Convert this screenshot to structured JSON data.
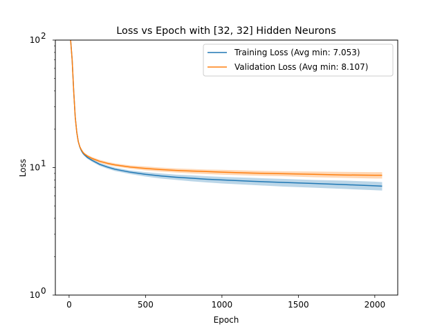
{
  "chart_data": {
    "type": "line",
    "title": "Loss vs Epoch with [32, 32] Hidden Neurons",
    "xlabel": "Epoch",
    "ylabel": "Loss",
    "xlim": [
      -90,
      2150
    ],
    "ylim": [
      1,
      100
    ],
    "yscale": "log",
    "grid": false,
    "legend_position": "top-right",
    "x_ticks": [
      0,
      500,
      1000,
      1500,
      2000
    ],
    "x_tick_labels": [
      "0",
      "500",
      "1000",
      "1500",
      "2000"
    ],
    "y_ticks": [
      1,
      10,
      100
    ],
    "y_tick_labels": [
      "10",
      "10",
      "10"
    ],
    "y_tick_exponents": [
      "0",
      "1",
      "2"
    ],
    "series": [
      {
        "name": "Training Loss (Avg min: 7.053)",
        "color": "#1f77b4",
        "band_color": "#1f77b4",
        "x": [
          10,
          20,
          30,
          40,
          50,
          60,
          70,
          80,
          90,
          100,
          120,
          150,
          200,
          250,
          300,
          400,
          500,
          600,
          700,
          800,
          900,
          1000,
          1200,
          1400,
          1600,
          1800,
          2000,
          2048
        ],
        "y": [
          100,
          70,
          40,
          25,
          19,
          16,
          14.5,
          13.6,
          13.0,
          12.6,
          12.0,
          11.4,
          10.6,
          10.1,
          9.7,
          9.2,
          8.85,
          8.6,
          8.4,
          8.25,
          8.1,
          8.0,
          7.8,
          7.65,
          7.5,
          7.35,
          7.2,
          7.15
        ],
        "y_lower": [
          100,
          70,
          40,
          25,
          19,
          16,
          14.2,
          13.3,
          12.7,
          12.3,
          11.7,
          11.1,
          10.3,
          9.8,
          9.4,
          8.9,
          8.5,
          8.2,
          8.0,
          7.8,
          7.65,
          7.5,
          7.3,
          7.1,
          6.95,
          6.8,
          6.65,
          6.6
        ],
        "y_upper": [
          100,
          70,
          40,
          25,
          19,
          16,
          14.8,
          13.9,
          13.3,
          12.9,
          12.3,
          11.7,
          10.9,
          10.4,
          10.0,
          9.5,
          9.2,
          9.0,
          8.8,
          8.7,
          8.55,
          8.45,
          8.3,
          8.15,
          8.0,
          7.9,
          7.75,
          7.7
        ]
      },
      {
        "name": "Validation Loss (Avg min: 8.107)",
        "color": "#ff7f0e",
        "band_color": "#ff7f0e",
        "x": [
          10,
          20,
          30,
          40,
          50,
          60,
          70,
          80,
          90,
          100,
          120,
          150,
          200,
          250,
          300,
          400,
          500,
          600,
          700,
          800,
          900,
          1000,
          1200,
          1400,
          1600,
          1800,
          2000,
          2048
        ],
        "y": [
          100,
          70,
          40,
          25,
          19,
          16,
          14.6,
          13.8,
          13.2,
          12.8,
          12.3,
          11.8,
          11.2,
          10.8,
          10.5,
          10.1,
          9.85,
          9.65,
          9.5,
          9.4,
          9.3,
          9.2,
          9.05,
          8.95,
          8.85,
          8.75,
          8.7,
          8.7
        ],
        "y_lower": [
          100,
          70,
          40,
          25,
          19,
          16,
          14.3,
          13.5,
          12.9,
          12.5,
          12.0,
          11.5,
          10.9,
          10.5,
          10.2,
          9.8,
          9.5,
          9.3,
          9.15,
          9.0,
          8.9,
          8.8,
          8.65,
          8.55,
          8.4,
          8.3,
          8.2,
          8.2
        ],
        "y_upper": [
          100,
          70,
          40,
          25,
          19,
          16,
          14.9,
          14.1,
          13.5,
          13.1,
          12.6,
          12.1,
          11.5,
          11.1,
          10.8,
          10.4,
          10.2,
          10.0,
          9.85,
          9.75,
          9.65,
          9.6,
          9.45,
          9.35,
          9.3,
          9.25,
          9.2,
          9.2
        ]
      }
    ]
  }
}
